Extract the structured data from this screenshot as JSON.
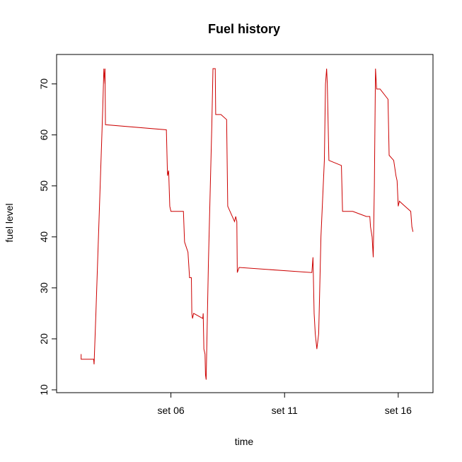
{
  "chart_data": {
    "type": "line",
    "title": "Fuel history",
    "xlabel": "time",
    "ylabel": "fuel level",
    "series_color": "#cc0000",
    "xlim": [
      1.5,
      17.0
    ],
    "ylim": [
      10,
      73
    ],
    "x_ticks": [
      {
        "value": 6,
        "label": "set 06"
      },
      {
        "value": 11,
        "label": "set 11"
      },
      {
        "value": 16,
        "label": "set 16"
      }
    ],
    "y_ticks": [
      {
        "value": 10,
        "label": "10"
      },
      {
        "value": 20,
        "label": "20"
      },
      {
        "value": 30,
        "label": "30"
      },
      {
        "value": 40,
        "label": "40"
      },
      {
        "value": 50,
        "label": "50"
      },
      {
        "value": 60,
        "label": "60"
      },
      {
        "value": 70,
        "label": "70"
      }
    ],
    "grid": false,
    "legend": "none",
    "series": [
      {
        "points": [
          [
            2.05,
            17
          ],
          [
            2.05,
            16
          ],
          [
            2.6,
            16
          ],
          [
            2.62,
            15
          ],
          [
            2.7,
            25
          ],
          [
            2.85,
            45
          ],
          [
            3.0,
            65
          ],
          [
            3.05,
            73
          ],
          [
            3.1,
            70
          ],
          [
            3.1,
            73
          ],
          [
            3.12,
            62
          ],
          [
            5.8,
            61
          ],
          [
            5.85,
            52
          ],
          [
            5.9,
            53
          ],
          [
            5.95,
            46
          ],
          [
            6.0,
            45
          ],
          [
            6.55,
            45
          ],
          [
            6.6,
            39
          ],
          [
            6.75,
            37
          ],
          [
            6.82,
            32
          ],
          [
            6.9,
            32
          ],
          [
            6.92,
            25
          ],
          [
            6.95,
            24
          ],
          [
            7.0,
            25
          ],
          [
            7.4,
            24
          ],
          [
            7.42,
            25
          ],
          [
            7.45,
            18
          ],
          [
            7.5,
            17
          ],
          [
            7.52,
            13
          ],
          [
            7.55,
            12
          ],
          [
            7.65,
            35
          ],
          [
            7.8,
            62
          ],
          [
            7.85,
            73
          ],
          [
            7.95,
            73
          ],
          [
            7.97,
            64
          ],
          [
            8.2,
            64
          ],
          [
            8.45,
            63
          ],
          [
            8.5,
            46
          ],
          [
            8.8,
            43
          ],
          [
            8.85,
            44
          ],
          [
            8.9,
            43
          ],
          [
            8.92,
            33
          ],
          [
            9.0,
            34
          ],
          [
            12.2,
            33
          ],
          [
            12.25,
            36
          ],
          [
            12.3,
            25
          ],
          [
            12.35,
            21
          ],
          [
            12.42,
            18
          ],
          [
            12.5,
            21
          ],
          [
            12.6,
            40
          ],
          [
            12.75,
            55
          ],
          [
            12.8,
            70
          ],
          [
            12.85,
            73
          ],
          [
            12.88,
            70
          ],
          [
            12.95,
            55
          ],
          [
            13.5,
            54
          ],
          [
            13.55,
            45
          ],
          [
            14.0,
            45
          ],
          [
            14.6,
            44
          ],
          [
            14.75,
            44
          ],
          [
            14.78,
            42
          ],
          [
            14.85,
            40
          ],
          [
            14.9,
            36
          ],
          [
            14.95,
            50
          ],
          [
            15.0,
            73
          ],
          [
            15.05,
            69
          ],
          [
            15.2,
            69
          ],
          [
            15.55,
            67
          ],
          [
            15.6,
            56
          ],
          [
            15.8,
            55
          ],
          [
            15.9,
            52
          ],
          [
            15.95,
            51
          ],
          [
            16.0,
            46
          ],
          [
            16.05,
            47
          ],
          [
            16.3,
            46
          ],
          [
            16.55,
            45
          ],
          [
            16.6,
            42
          ],
          [
            16.65,
            41
          ]
        ]
      }
    ]
  }
}
